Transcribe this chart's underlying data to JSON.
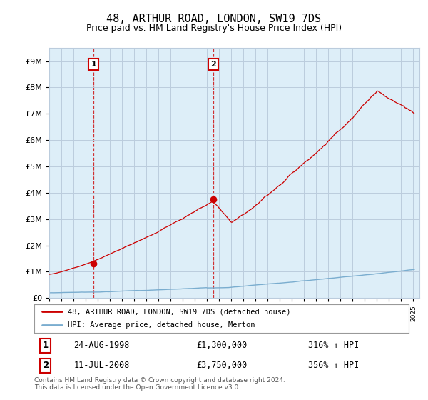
{
  "title": "48, ARTHUR ROAD, LONDON, SW19 7DS",
  "subtitle": "Price paid vs. HM Land Registry's House Price Index (HPI)",
  "ylabel_ticks": [
    "£0",
    "£1M",
    "£2M",
    "£3M",
    "£4M",
    "£5M",
    "£6M",
    "£7M",
    "£8M",
    "£9M"
  ],
  "ytick_values": [
    0,
    1000000,
    2000000,
    3000000,
    4000000,
    5000000,
    6000000,
    7000000,
    8000000,
    9000000
  ],
  "ylim": [
    0,
    9500000
  ],
  "xlim_start": 1995.0,
  "xlim_end": 2025.5,
  "sale1_year": 1998.65,
  "sale1_price": 1300000,
  "sale2_year": 2008.52,
  "sale2_price": 3750000,
  "sale1_date": "24-AUG-1998",
  "sale1_hpi": "316% ↑ HPI",
  "sale1_price_str": "£1,300,000",
  "sale2_date": "11-JUL-2008",
  "sale2_hpi": "356% ↑ HPI",
  "sale2_price_str": "£3,750,000",
  "legend_line1": "48, ARTHUR ROAD, LONDON, SW19 7DS (detached house)",
  "legend_line2": "HPI: Average price, detached house, Merton",
  "footer": "Contains HM Land Registry data © Crown copyright and database right 2024.\nThis data is licensed under the Open Government Licence v3.0.",
  "line_color_red": "#cc0000",
  "line_color_blue": "#7aadcf",
  "background_color": "#ffffff",
  "plot_bg_color": "#ddeef8",
  "grid_color": "#bbccdd",
  "annotation_box_color": "#cc0000",
  "title_fontsize": 11,
  "subtitle_fontsize": 9
}
